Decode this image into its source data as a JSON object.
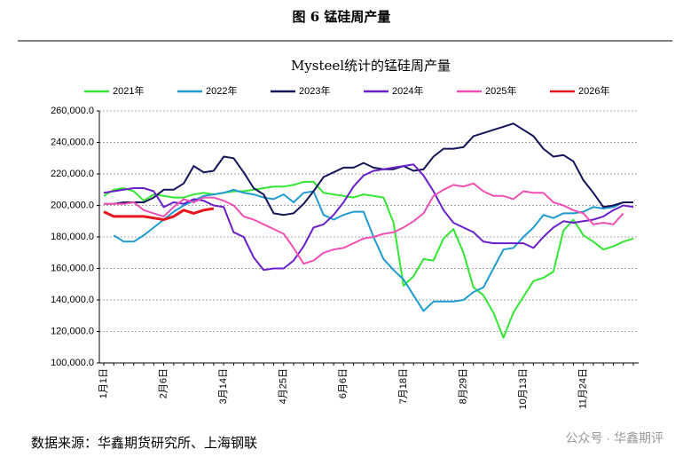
{
  "figure_title": "图 6  锰硅周产量",
  "source": "数据来源：华鑫期货研究所、上海钢联",
  "watermark": "公众号 · 华鑫期评",
  "chart_data": {
    "type": "line",
    "title": "Mysteel统计的锰硅周产量",
    "categories": [
      "1月1日",
      null,
      null,
      null,
      null,
      null,
      "2月6日",
      null,
      null,
      null,
      null,
      null,
      "3月14日",
      null,
      null,
      null,
      null,
      null,
      "4月25日",
      null,
      null,
      null,
      null,
      null,
      "6月6日",
      null,
      null,
      null,
      null,
      null,
      "7月18日",
      null,
      null,
      null,
      null,
      null,
      "8月29日",
      null,
      null,
      null,
      null,
      null,
      "10月13日",
      null,
      null,
      null,
      null,
      null,
      "11月24日",
      null,
      null,
      null,
      null,
      null
    ],
    "ylim": [
      100000,
      260000
    ],
    "yticks": [
      {
        "value": 100000,
        "label": "100,000.0"
      },
      {
        "value": 120000,
        "label": "120,000.0"
      },
      {
        "value": 140000,
        "label": "140,000.0"
      },
      {
        "value": 160000,
        "label": "160,000.0"
      },
      {
        "value": 180000,
        "label": "180,000.0"
      },
      {
        "value": 200000,
        "label": "200,000.0"
      },
      {
        "value": 220000,
        "label": "220,000.0"
      },
      {
        "value": 240000,
        "label": "240,000.0"
      },
      {
        "value": 260000,
        "label": "260,000.0"
      }
    ],
    "grid": true,
    "series": [
      {
        "name": "2021年",
        "color": "#33e633",
        "values": [
          206000,
          210000,
          211000,
          209000,
          203000,
          207000,
          206000,
          205000,
          205000,
          207000,
          208000,
          207000,
          208000,
          209000,
          209000,
          210000,
          211000,
          212000,
          212000,
          213000,
          215000,
          215000,
          208000,
          207000,
          206000,
          205000,
          207000,
          206000,
          205000,
          189000,
          149000,
          155000,
          166000,
          165000,
          179000,
          185000,
          170000,
          148000,
          143000,
          132000,
          116000,
          132000,
          142000,
          152000,
          154000,
          158000,
          184000,
          191000,
          181000,
          177000,
          172000,
          174000,
          177000,
          179000
        ]
      },
      {
        "name": "2022年",
        "color": "#1f9bd1",
        "values": [
          null,
          181000,
          177000,
          177000,
          181000,
          186000,
          191000,
          196000,
          200000,
          203000,
          206000,
          207000,
          208000,
          210000,
          208000,
          207000,
          205000,
          204000,
          207000,
          202000,
          208000,
          209000,
          194000,
          191000,
          194000,
          196000,
          196000,
          180000,
          166000,
          159000,
          153000,
          143000,
          133000,
          139000,
          139000,
          139000,
          140000,
          145000,
          148000,
          160000,
          172000,
          173000,
          180000,
          186000,
          194000,
          192000,
          195000,
          195000,
          196000,
          199000,
          198000,
          199000,
          202000,
          202000
        ]
      },
      {
        "name": "2023年",
        "color": "#14145a",
        "values": [
          201000,
          201000,
          202000,
          202000,
          202000,
          205000,
          210000,
          210000,
          214000,
          225000,
          221000,
          222000,
          231000,
          230000,
          221000,
          211000,
          207000,
          195000,
          194000,
          195000,
          201000,
          209000,
          218000,
          221000,
          224000,
          224000,
          227000,
          224000,
          223000,
          223000,
          225000,
          222000,
          223000,
          231000,
          236000,
          236000,
          237000,
          244000,
          246000,
          248000,
          250000,
          252000,
          248000,
          244000,
          236000,
          231000,
          232000,
          228000,
          216000,
          208000,
          199000,
          200000,
          202000,
          202000
        ]
      },
      {
        "name": "2024年",
        "color": "#6a1fc9",
        "values": [
          208000,
          209000,
          210000,
          211000,
          211000,
          209000,
          199000,
          202000,
          201000,
          204000,
          203000,
          200000,
          199000,
          183000,
          180000,
          167000,
          159000,
          160000,
          160000,
          165000,
          174000,
          186000,
          188000,
          194000,
          202000,
          212000,
          219000,
          222000,
          223000,
          224000,
          225000,
          226000,
          219000,
          209000,
          197000,
          189000,
          186000,
          183000,
          177000,
          176000,
          176000,
          176000,
          176000,
          173000,
          180000,
          186000,
          190000,
          189000,
          190000,
          191000,
          193000,
          197000,
          200000,
          199000
        ]
      },
      {
        "name": "2025年",
        "color": "#f050b4",
        "values": [
          201000,
          201000,
          201000,
          202000,
          197000,
          195000,
          193000,
          199000,
          204000,
          202000,
          205000,
          205000,
          203000,
          200000,
          193000,
          191000,
          188000,
          185000,
          182000,
          173000,
          163000,
          165000,
          170000,
          172000,
          173000,
          176000,
          179000,
          180000,
          182000,
          183000,
          186000,
          190000,
          195000,
          206000,
          210000,
          213000,
          212000,
          214000,
          209000,
          206000,
          206000,
          204000,
          209000,
          208000,
          208000,
          202000,
          200000,
          197000,
          195000,
          188000,
          189000,
          188000,
          195000,
          null
        ]
      },
      {
        "name": "2026年",
        "color": "#e8141e",
        "values": [
          196000,
          193000,
          193000,
          193000,
          193000,
          192000,
          191000,
          193000,
          197000,
          195000,
          197000,
          198000,
          null,
          null,
          null,
          null,
          null,
          null,
          null,
          null,
          null,
          null,
          null,
          null,
          null,
          null,
          null,
          null,
          null,
          null,
          null,
          null,
          null,
          null,
          null,
          null,
          null,
          null,
          null,
          null,
          null,
          null,
          null,
          null,
          null,
          null,
          null,
          null,
          null,
          null,
          null,
          null,
          null,
          null
        ]
      }
    ]
  }
}
